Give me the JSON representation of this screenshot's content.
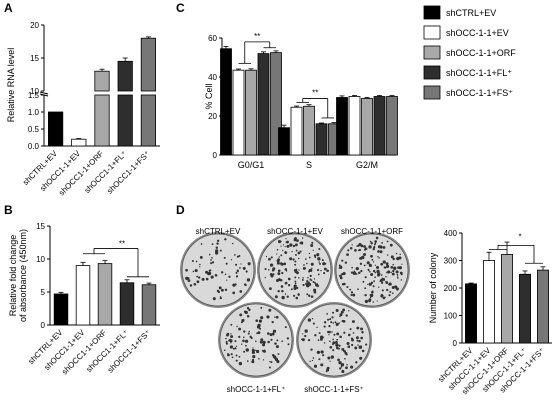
{
  "colors": {
    "black": "#000000",
    "white": "#ffffff",
    "light_gray": "#a8a8a8",
    "dark_gray": "#2e2e2e",
    "mid_gray": "#777777"
  },
  "legend": {
    "items": [
      {
        "label": "shCTRL+EV",
        "color": "#000000"
      },
      {
        "label": "shOCC-1-1+EV",
        "color": "#ffffff"
      },
      {
        "label": "shOCC-1-1+ORF",
        "color": "#a8a8a8"
      },
      {
        "label": "shOCC-1-1+FL⁺",
        "color": "#2e2e2e"
      },
      {
        "label": "shOCC-1-1+FS⁺",
        "color": "#777777"
      }
    ]
  },
  "panel_letters": {
    "a": "A",
    "b": "B",
    "c": "C",
    "d": "D"
  },
  "colony_labels": {
    "top": [
      "shCTRL+EV",
      "shOCC-1-1+EV",
      "shOCC-1-1+ORF"
    ],
    "bottom": [
      "shOCC-1-1+FL⁺",
      "shOCC-1-1+FS⁺"
    ]
  },
  "chart_data": [
    {
      "id": "A",
      "type": "bar",
      "ylabel": "Relative RNA level",
      "y_axis_break": true,
      "yticks_lower": [
        "0.0",
        "0.5",
        "1.0",
        "1.5"
      ],
      "yticks_upper": [
        "10",
        "15",
        "20"
      ],
      "categories": [
        "shCTRL+EV",
        "shOCC1-1+EV",
        "shOCC1-1+ORF",
        "shOCC1-1+FL⁺",
        "shOCC1-1+FS⁺"
      ],
      "values": [
        1.0,
        0.2,
        13.0,
        14.5,
        18.0
      ],
      "errors": [
        0.0,
        0.02,
        0.3,
        0.5,
        0.2
      ]
    },
    {
      "id": "B",
      "type": "bar",
      "ylabel": "Relative fold change of absorbance (450nm)",
      "ylim": [
        0,
        15
      ],
      "yticks": [
        0,
        5,
        10,
        15
      ],
      "categories": [
        "shCTRL+EV",
        "shOCC1-1+EV",
        "shOCC1-1+ORF",
        "shOCC1-1+FL⁺",
        "shOCC1-1+FS⁺"
      ],
      "values": [
        4.7,
        9.0,
        9.3,
        6.4,
        6.1
      ],
      "errors": [
        0.25,
        0.5,
        0.45,
        0.45,
        0.25
      ],
      "significance": "**"
    },
    {
      "id": "C",
      "type": "bar",
      "ylabel": "% Cell",
      "ylim": [
        0,
        60
      ],
      "yticks": [
        0,
        20,
        40,
        60
      ],
      "categories": [
        "G0/G1",
        "S",
        "G2/M"
      ],
      "series": [
        {
          "name": "shCTRL+EV",
          "values": [
            54.5,
            14.0,
            29.5
          ],
          "errors": [
            1.2,
            1.3,
            0.8
          ]
        },
        {
          "name": "shOCC-1-1+EV",
          "values": [
            43.5,
            24.5,
            30.0
          ],
          "errors": [
            0.6,
            0.6,
            0.5
          ]
        },
        {
          "name": "shOCC-1-1+ORF",
          "values": [
            43.5,
            25.0,
            29.0
          ],
          "errors": [
            0.7,
            0.8,
            0.5
          ]
        },
        {
          "name": "shOCC-1-1+FL⁺",
          "values": [
            52.0,
            16.0,
            30.0
          ],
          "errors": [
            0.9,
            0.4,
            0.5
          ]
        },
        {
          "name": "shOCC-1-1+FS⁺",
          "values": [
            52.5,
            16.0,
            30.0
          ],
          "errors": [
            0.9,
            0.6,
            0.5
          ]
        }
      ],
      "significance": [
        "**",
        "**"
      ]
    },
    {
      "id": "D",
      "type": "bar",
      "ylabel": "Number of colony",
      "ylim": [
        0,
        400
      ],
      "yticks": [
        0,
        100,
        200,
        300,
        400
      ],
      "categories": [
        "shCTRL+EV",
        "shOCC-1-1+EV",
        "shOCC-1-1+ORF",
        "shOCC-1-1+FL⁺",
        "shOCC-1-1+FS⁺"
      ],
      "values": [
        215,
        300,
        322,
        250,
        265
      ],
      "errors": [
        3,
        30,
        45,
        12,
        12
      ],
      "significance": "*"
    }
  ]
}
